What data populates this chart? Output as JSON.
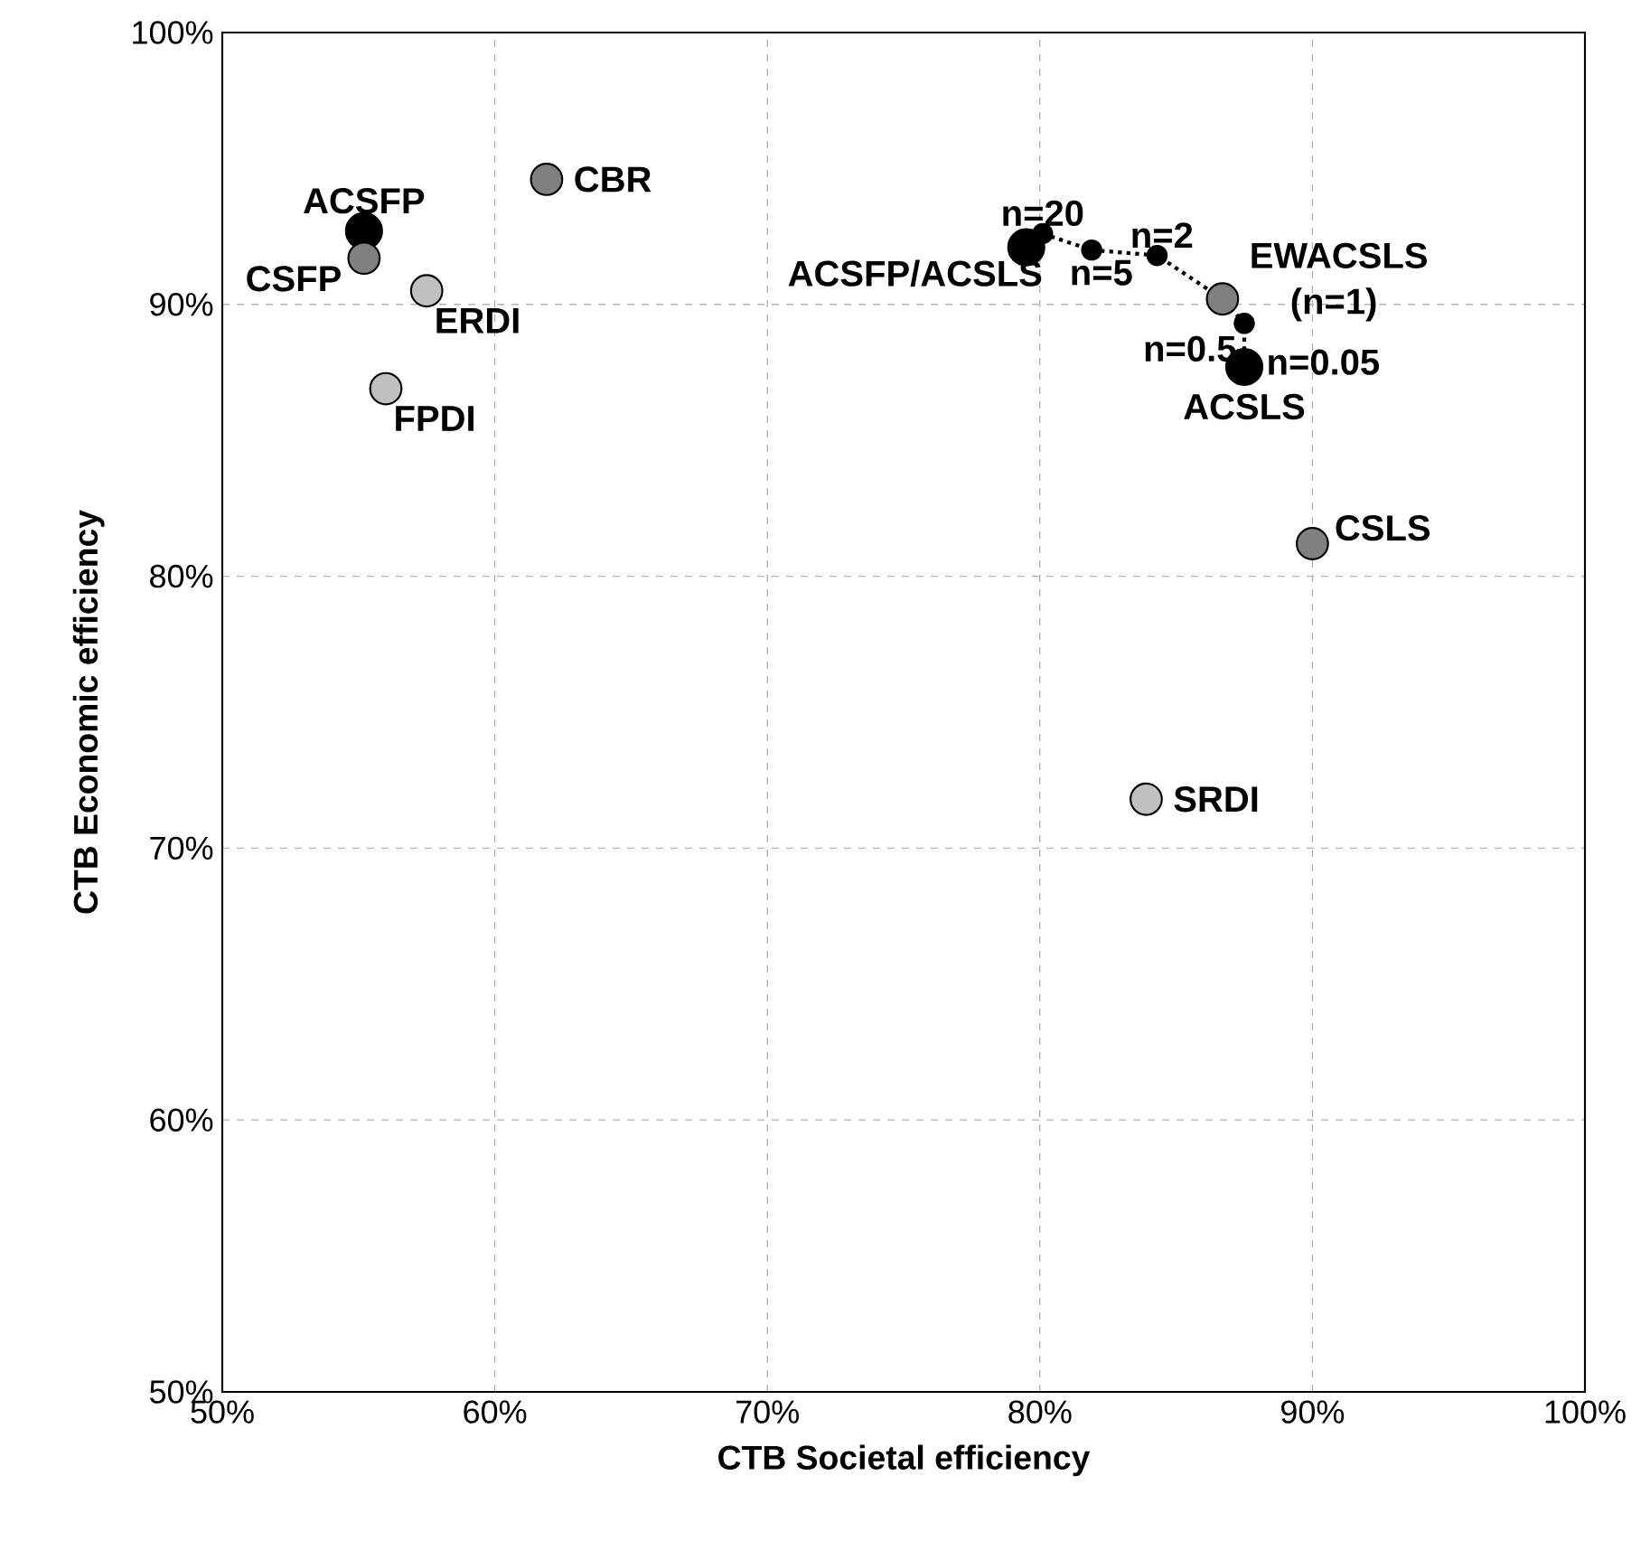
{
  "chart_data": {
    "type": "scatter",
    "xlabel": "CTB Societal efficiency",
    "ylabel": "CTB Economic efficiency",
    "xlim": [
      50,
      100
    ],
    "ylim": [
      50,
      100
    ],
    "xticks": [
      {
        "value": 50,
        "label": "50%"
      },
      {
        "value": 60,
        "label": "60%"
      },
      {
        "value": 70,
        "label": "70%"
      },
      {
        "value": 80,
        "label": "80%"
      },
      {
        "value": 90,
        "label": "90%"
      },
      {
        "value": 100,
        "label": "100%"
      }
    ],
    "yticks": [
      {
        "value": 50,
        "label": "50%"
      },
      {
        "value": 60,
        "label": "60%"
      },
      {
        "value": 70,
        "label": "70%"
      },
      {
        "value": 80,
        "label": "80%"
      },
      {
        "value": 90,
        "label": "90%"
      },
      {
        "value": 100,
        "label": "100%"
      }
    ],
    "grid": true,
    "marker": "circle",
    "series": [
      {
        "type": "line",
        "line_style": "dotted",
        "color": "#000000",
        "x": [
          80.1,
          81.9,
          84.3,
          86.7,
          87.5,
          87.5
        ],
        "values": [
          92.6,
          92.0,
          91.8,
          90.2,
          89.3,
          87.7
        ]
      },
      {
        "x": [
          55.2,
          55.2,
          61.9,
          57.5,
          56.0,
          90.0,
          83.9,
          79.5,
          86.7,
          87.5
        ],
        "values": [
          92.7,
          91.7,
          94.6,
          90.5,
          86.9,
          81.2,
          71.8,
          92.1,
          90.2,
          87.7
        ],
        "colors": [
          "#000000",
          "#808080",
          "#808080",
          "#c0c0c0",
          "#c0c0c0",
          "#808080",
          "#c0c0c0",
          "#000000",
          "#7f7f7f",
          "#000000"
        ]
      }
    ],
    "annotations": [
      {
        "text": "ACSFP",
        "x": 55.2,
        "y": 92.7
      },
      {
        "text": "CSFP",
        "x": 55.2,
        "y": 91.7
      },
      {
        "text": "CBR",
        "x": 61.9,
        "y": 94.6
      },
      {
        "text": "ERDI",
        "x": 57.5,
        "y": 90.5
      },
      {
        "text": "FPDI",
        "x": 56.0,
        "y": 86.9
      },
      {
        "text": "CSLS",
        "x": 90.0,
        "y": 81.2
      },
      {
        "text": "SRDI",
        "x": 83.9,
        "y": 71.8
      },
      {
        "text": "ACSFP/ACSLS",
        "x": 79.5,
        "y": 92.1
      },
      {
        "text": "n=20",
        "x": 80.1,
        "y": 92.6
      },
      {
        "text": "n=5",
        "x": 81.9,
        "y": 92.0
      },
      {
        "text": "n=2",
        "x": 84.3,
        "y": 91.8
      },
      {
        "text": "EWACSLS (n=1)",
        "x": 86.7,
        "y": 90.2
      },
      {
        "text": "n=0.5",
        "x": 87.5,
        "y": 89.3
      },
      {
        "text": "n=0.05",
        "x": 87.5,
        "y": 87.7
      },
      {
        "text": "ACSLS",
        "x": 87.5,
        "y": 87.7
      }
    ]
  }
}
